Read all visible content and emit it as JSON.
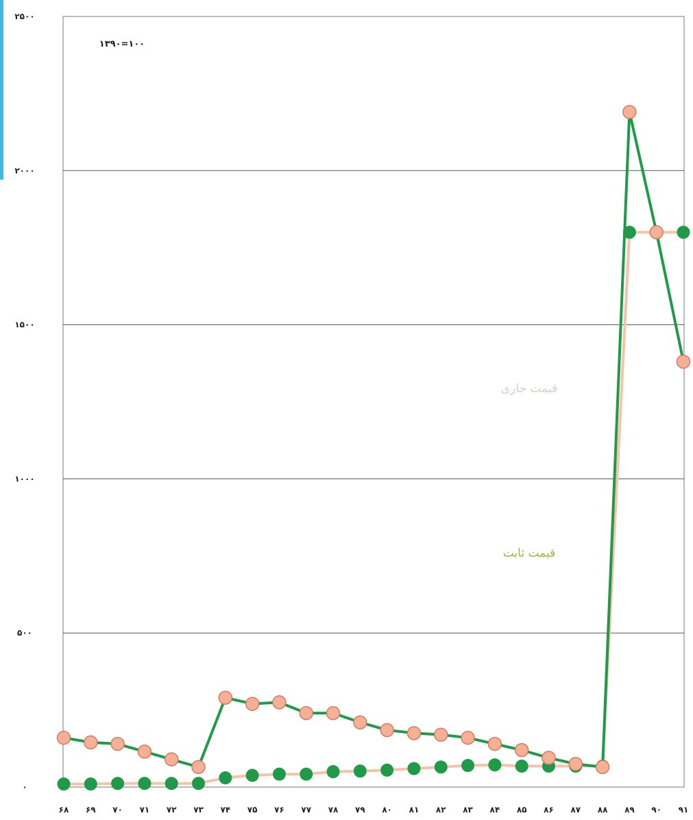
{
  "chart_data": {
    "type": "line",
    "base_label": "۱۳۹۰=۱۰۰",
    "x_tick_labels": [
      "۶۸",
      "۶۹",
      "۷۰",
      "۷۱",
      "۷۲",
      "۷۳",
      "۷۴",
      "۷۵",
      "۷۶",
      "۷۷",
      "۷۸",
      "۷۹",
      "۸۰",
      "۸۱",
      "۸۲",
      "۸۳",
      "۸۴",
      "۸۵",
      "۸۶",
      "۸۷",
      "۸۸",
      "۸۹",
      "۹۰",
      "۹۱"
    ],
    "y_tick_labels": [
      "۰",
      "۵۰۰",
      "۱۰۰۰",
      "۱۵۰۰",
      "۲۰۰۰",
      "۲۵۰۰"
    ],
    "x": [
      1368,
      1369,
      1370,
      1371,
      1372,
      1373,
      1374,
      1375,
      1376,
      1377,
      1378,
      1379,
      1380,
      1381,
      1382,
      1383,
      1384,
      1385,
      1386,
      1387,
      1388,
      1389,
      1390,
      1391
    ],
    "ylim": [
      0,
      2500
    ],
    "yticks": [
      0,
      500,
      1000,
      1500,
      2000,
      2500
    ],
    "grid": true,
    "series": [
      {
        "name": "قیمت جاری",
        "line_color": "#1e9a48",
        "marker_fill": "#f5b096",
        "marker_stroke": "#d07c62",
        "values": [
          160,
          145,
          140,
          115,
          90,
          65,
          290,
          270,
          275,
          240,
          240,
          210,
          185,
          175,
          170,
          160,
          140,
          120,
          95,
          75,
          65,
          2190,
          1800,
          1380
        ]
      },
      {
        "name": "قیمت ثابت",
        "line_color": "#f7c2a8",
        "marker_fill": "#1e9a48",
        "marker_stroke": "#1e9a48",
        "values": [
          10,
          10,
          12,
          12,
          12,
          12,
          30,
          38,
          42,
          42,
          50,
          52,
          55,
          60,
          65,
          70,
          72,
          68,
          68,
          68,
          68,
          1800,
          1800,
          1800
        ]
      }
    ],
    "annotations": [
      {
        "text": "قیمت جاری",
        "series": "قیمت جاری"
      },
      {
        "text": "قیمت ثابت",
        "series": "قیمت ثابت"
      }
    ]
  }
}
